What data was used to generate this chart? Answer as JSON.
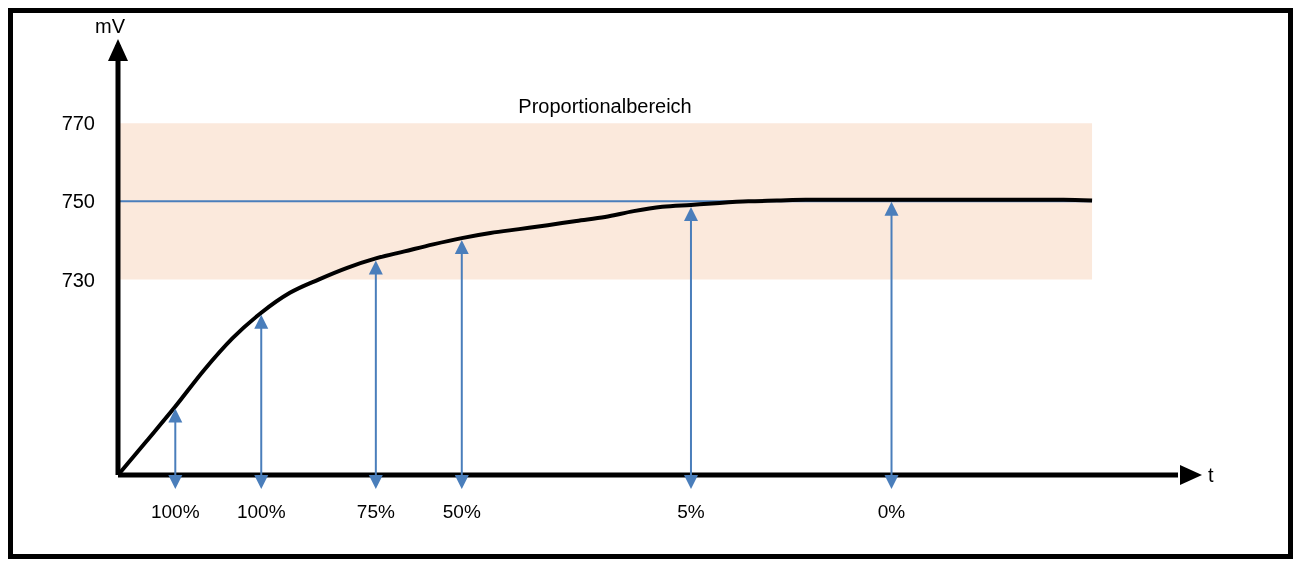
{
  "chart_data": {
    "type": "line",
    "xlabel": "t",
    "ylabel": "mV",
    "categories": [
      null,
      null,
      "100%",
      null,
      null,
      "100%",
      null,
      null,
      null,
      "75%",
      null,
      null,
      "50%",
      null,
      null,
      null,
      null,
      null,
      null,
      null,
      "5%",
      null,
      null,
      null,
      null,
      null,
      null,
      "0%",
      null,
      null,
      null,
      null,
      null,
      null,
      null,
      null,
      null,
      null
    ],
    "series": [
      {
        "color": "#000000",
        "values": [
          680,
          688.7,
          697.5,
          706.8,
          715,
          721.5,
          726.6,
          730,
          733,
          735.4,
          737.2,
          739,
          740.6,
          741.9,
          742.9,
          743.9,
          745,
          746,
          747.5,
          748.6,
          749.1,
          749.6,
          750,
          750.2,
          750.4,
          750.4,
          750.4,
          750.4,
          750.4,
          750.4,
          750.4,
          750.4,
          750.4,
          750.4,
          750.2,
          null,
          null,
          null
        ]
      }
    ],
    "ylim": [
      680,
      790
    ],
    "yticks": [
      730,
      750,
      770
    ],
    "bands": [
      {
        "axis": "y",
        "from": 730,
        "to": 770,
        "label": "Proportionalbereich",
        "color": "#fbe9dc"
      }
    ],
    "ref_lines": [
      {
        "axis": "y",
        "value": 750,
        "color": "#4a7ebb"
      }
    ]
  }
}
